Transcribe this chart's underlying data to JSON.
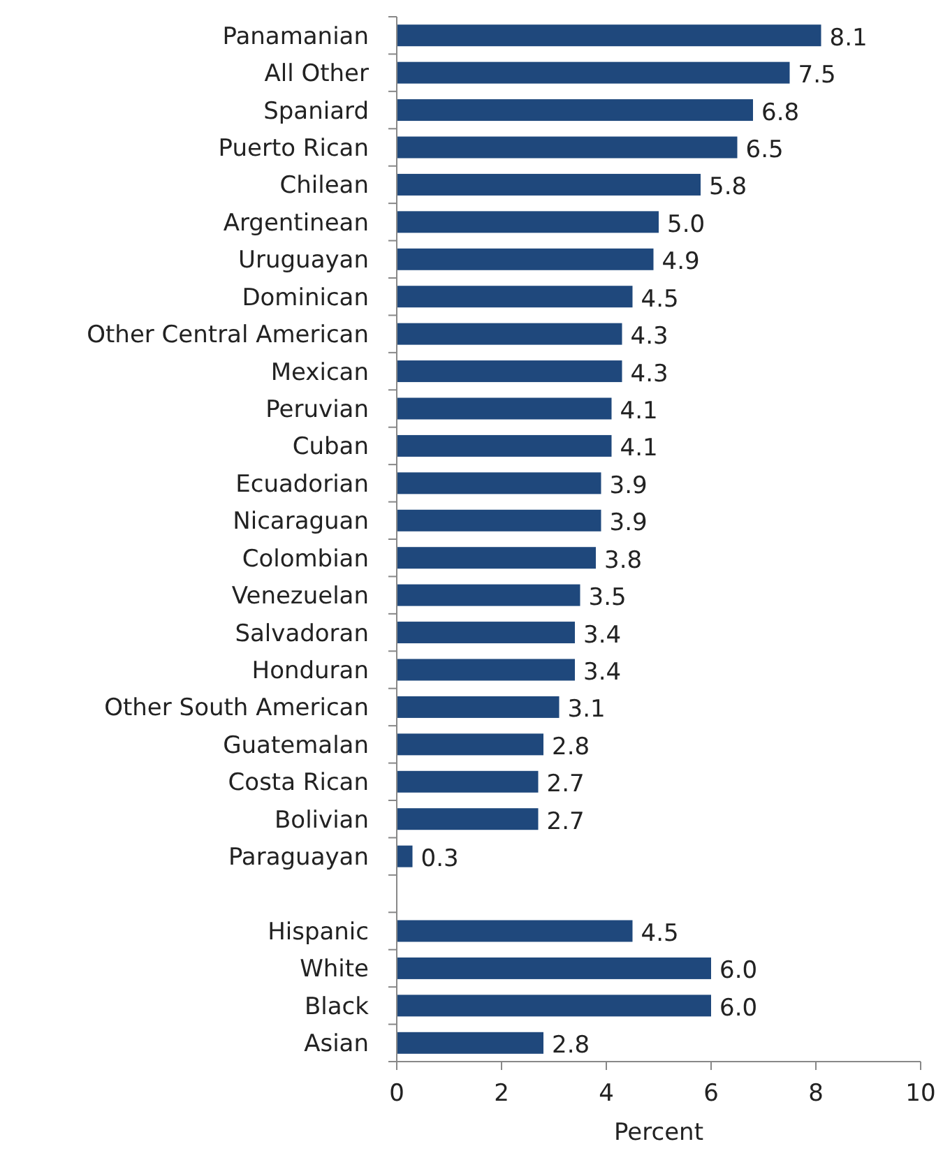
{
  "chart_data": {
    "type": "bar",
    "orientation": "horizontal",
    "xlabel": "Percent",
    "categories": [
      "Panamanian",
      "All Other",
      "Spaniard",
      "Puerto Rican",
      "Chilean",
      "Argentinean",
      "Uruguayan",
      "Dominican",
      "Other Central American",
      "Mexican",
      "Peruvian",
      "Cuban",
      "Ecuadorian",
      "Nicaraguan",
      "Colombian",
      "Venezuelan",
      "Salvadoran",
      "Honduran",
      "Other South American",
      "Guatemalan",
      "Costa Rican",
      "Bolivian",
      "Paraguayan",
      null,
      "Hispanic",
      "White",
      "Black",
      "Asian"
    ],
    "values": [
      8.1,
      7.5,
      6.8,
      6.5,
      5.8,
      5.0,
      4.9,
      4.5,
      4.3,
      4.3,
      4.1,
      4.1,
      3.9,
      3.9,
      3.8,
      3.5,
      3.4,
      3.4,
      3.1,
      2.8,
      2.7,
      2.7,
      0.3,
      null,
      4.5,
      6.0,
      6.0,
      2.8
    ],
    "value_labels": [
      "8.1",
      "7.5",
      "6.8",
      "6.5",
      "5.8",
      "5.0",
      "4.9",
      "4.5",
      "4.3",
      "4.3",
      "4.1",
      "4.1",
      "3.9",
      "3.9",
      "3.8",
      "3.5",
      "3.4",
      "3.4",
      "3.1",
      "2.8",
      "2.7",
      "2.7",
      "0.3",
      null,
      "4.5",
      "6.0",
      "6.0",
      "2.8"
    ],
    "color": "#1f487c",
    "xlim": [
      0,
      10
    ],
    "xticks": [
      0,
      2,
      4,
      6,
      8,
      10
    ],
    "grid": false
  }
}
